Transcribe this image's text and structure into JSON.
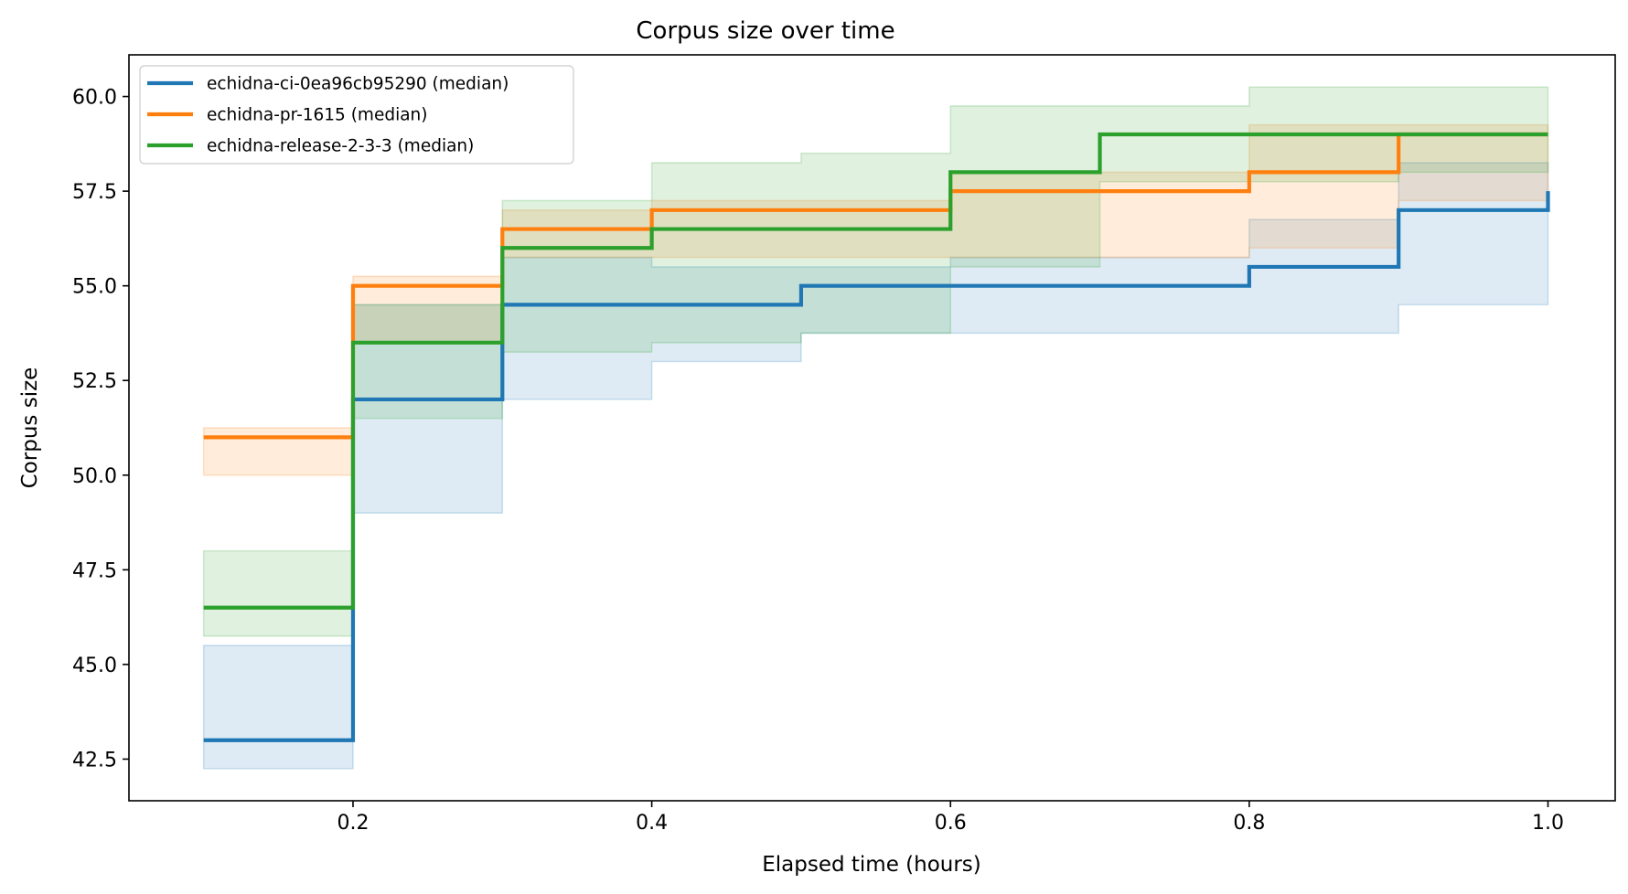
{
  "chart_data": {
    "type": "line",
    "step": "post",
    "title": "Corpus size over time",
    "xlabel": "Elapsed time (hours)",
    "ylabel": "Corpus size",
    "xlim": [
      0.05,
      1.045
    ],
    "ylim": [
      41.4,
      61.1
    ],
    "xticks": [
      0.2,
      0.4,
      0.6,
      0.8,
      1.0
    ],
    "xtick_labels": [
      "0.2",
      "0.4",
      "0.6",
      "0.8",
      "1.0"
    ],
    "yticks": [
      42.5,
      45.0,
      47.5,
      50.0,
      52.5,
      55.0,
      57.5,
      60.0
    ],
    "ytick_labels": [
      "42.5",
      "45.0",
      "47.5",
      "50.0",
      "52.5",
      "55.0",
      "57.5",
      "60.0"
    ],
    "grid": false,
    "legend_position": "top-left",
    "x": [
      0.1,
      0.2,
      0.3,
      0.4,
      0.5,
      0.6,
      0.7,
      0.8,
      0.9,
      1.0
    ],
    "series": [
      {
        "name": "echidna-ci-0ea96cb95290 (median)",
        "color": "#1f77b4",
        "values": [
          43.0,
          52.0,
          54.5,
          54.5,
          55.0,
          55.0,
          55.0,
          55.5,
          57.0,
          57.5
        ],
        "band_low": [
          42.25,
          49.0,
          52.0,
          53.0,
          53.75,
          53.75,
          53.75,
          53.75,
          54.5,
          54.5
        ],
        "band_high": [
          45.5,
          54.5,
          55.75,
          55.5,
          55.5,
          55.75,
          55.75,
          56.75,
          58.25,
          58.25
        ]
      },
      {
        "name": "echidna-pr-1615 (median)",
        "color": "#ff7f0e",
        "values": [
          51.0,
          55.0,
          56.5,
          57.0,
          57.0,
          57.5,
          57.5,
          58.0,
          59.0,
          59.0
        ],
        "band_low": [
          50.0,
          53.5,
          55.75,
          55.75,
          55.75,
          55.75,
          55.75,
          56.0,
          57.25,
          57.25
        ],
        "band_high": [
          51.25,
          55.25,
          57.0,
          57.25,
          57.25,
          58.0,
          58.0,
          59.25,
          59.25,
          59.25
        ]
      },
      {
        "name": "echidna-release-2-3-3 (median)",
        "color": "#2ca02c",
        "values": [
          46.5,
          53.5,
          56.0,
          56.5,
          56.5,
          58.0,
          59.0,
          59.0,
          59.0,
          59.0
        ],
        "band_low": [
          45.75,
          51.5,
          53.25,
          53.5,
          53.75,
          55.5,
          57.75,
          57.75,
          58.0,
          58.0
        ],
        "band_high": [
          48.0,
          54.5,
          57.25,
          58.25,
          58.5,
          59.75,
          59.75,
          60.25,
          60.25,
          60.25
        ]
      }
    ]
  }
}
